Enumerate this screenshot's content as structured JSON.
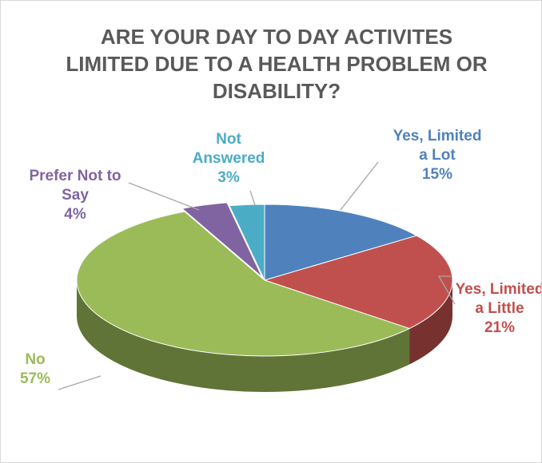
{
  "chart_data": {
    "type": "pie",
    "title": "ARE YOUR DAY TO DAY ACTIVITES LIMITED DUE TO A HEALTH PROBLEM OR DISABILITY?",
    "categories": [
      "Yes, Limited a Lot",
      "Yes, Limited a Little",
      "No",
      "Prefer Not to Say",
      "Not Answered"
    ],
    "values": [
      15,
      21,
      57,
      4,
      3
    ],
    "value_labels": [
      "15%",
      "21%",
      "57%",
      "4%",
      "3%"
    ],
    "colors": [
      "#4f81bd",
      "#c0504d",
      "#9bbb59",
      "#8064a2",
      "#4bacc6"
    ]
  }
}
